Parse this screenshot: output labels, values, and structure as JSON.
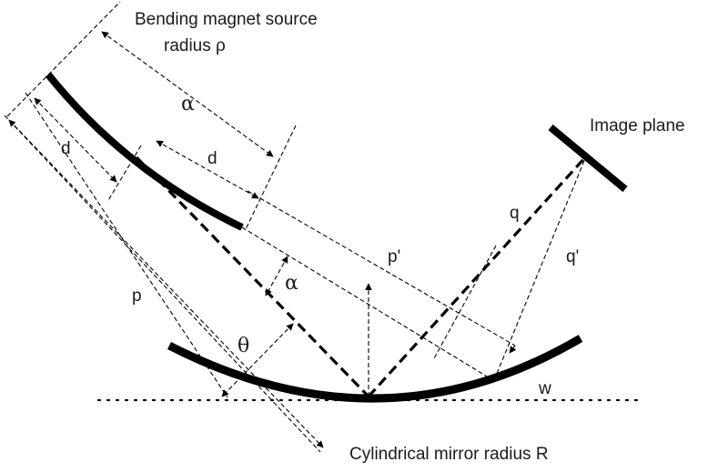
{
  "labels": {
    "source_line1": "Bending magnet source",
    "source_line2": "radius ρ",
    "alpha_top": "α",
    "d_left": "d",
    "d_mid": "d",
    "image_plane": "Image plane",
    "q": "q",
    "q_prime": "q'",
    "p_prime": "p'",
    "p": "p",
    "alpha_mid": "α",
    "theta": "θ",
    "w": "w",
    "mirror": "Cylindrical mirror radius R"
  }
}
